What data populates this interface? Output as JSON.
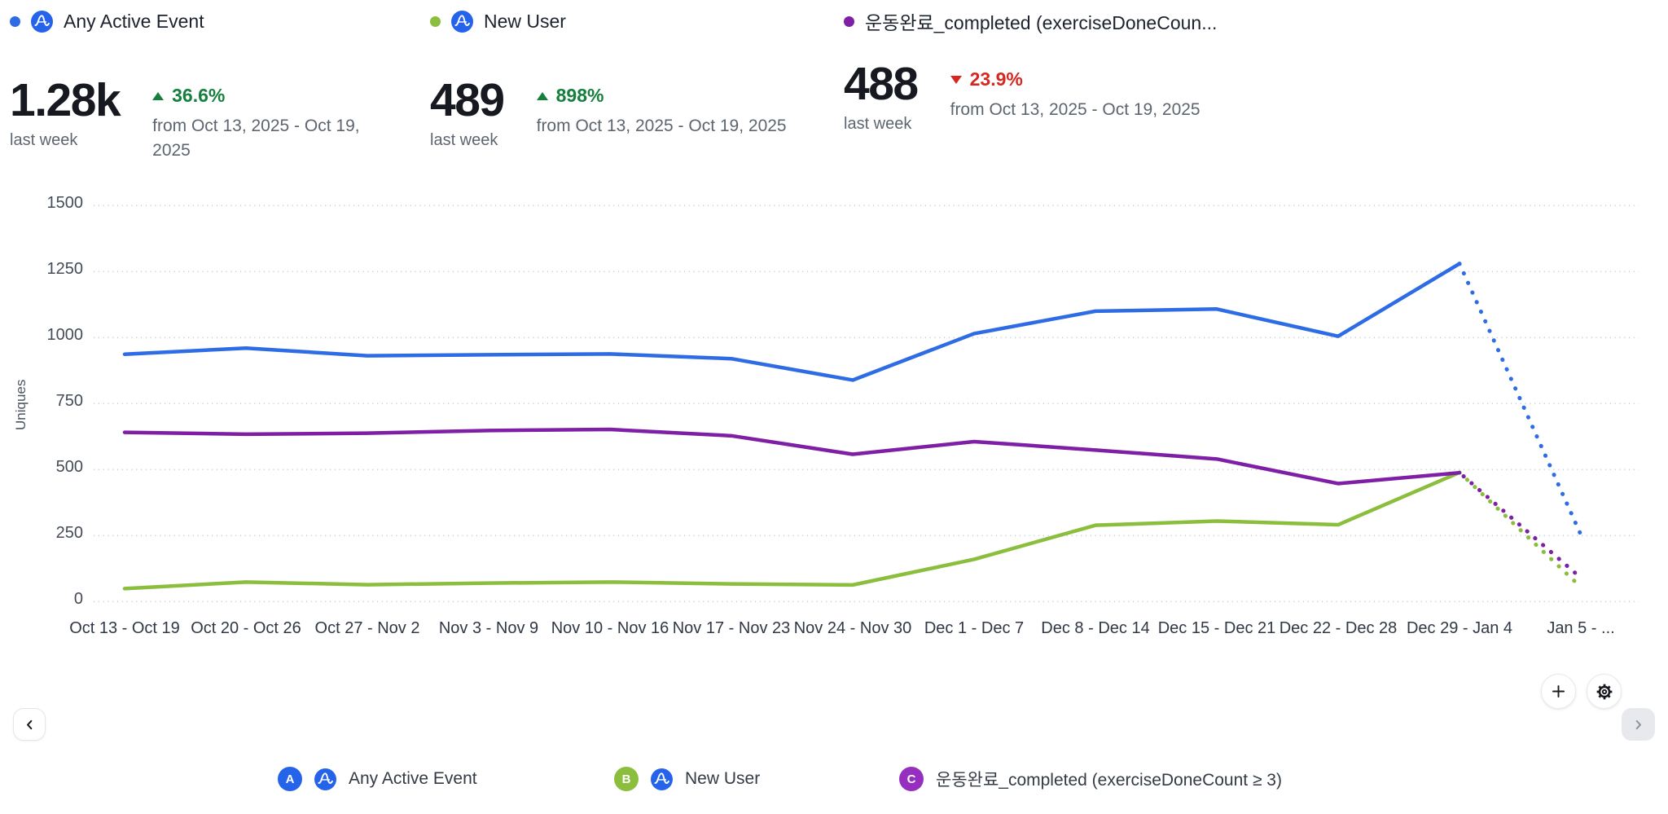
{
  "metrics": [
    {
      "label": "Any Active Event",
      "color": "#2d6ce5",
      "value": "1.28k",
      "value_caption": "last week",
      "delta": "36.6%",
      "delta_direction": "up",
      "compare_text": "from Oct 13, 2025 - Oct 19, 2025",
      "amplitude_icon": true
    },
    {
      "label": "New User",
      "color": "#8cbe3d",
      "value": "489",
      "value_caption": "last week",
      "delta": "898%",
      "delta_direction": "up",
      "compare_text": "from Oct 13, 2025 - Oct 19, 2025",
      "amplitude_icon": true
    },
    {
      "label": "운동완료_completed (exerciseDoneCoun...",
      "color": "#7e1fa5",
      "value": "488",
      "value_caption": "last week",
      "delta": "23.9%",
      "delta_direction": "down",
      "compare_text": "from Oct 13, 2025 - Oct 19, 2025",
      "amplitude_icon": false
    }
  ],
  "delta_colors": {
    "up": "#15803d",
    "down": "#d6281f"
  },
  "chart_data": {
    "type": "line",
    "title": "",
    "ylabel": "Uniques",
    "ylim": [
      0,
      1500
    ],
    "yticks": [
      1500,
      1250,
      1000,
      750,
      500,
      250,
      0
    ],
    "grid": "dotted-horizontal",
    "categories": [
      "Oct 13 - Oct 19",
      "Oct 20 - Oct 26",
      "Oct 27 - Nov 2",
      "Nov 3 - Nov 9",
      "Nov 10 - Nov 16",
      "Nov 17 - Nov 23",
      "Nov 24 - Nov 30",
      "Dec 1 - Dec 7",
      "Dec 8 - Dec 14",
      "Dec 15 - Dec 21",
      "Dec 22 - Dec 28",
      "Dec 29 - Jan 4",
      "Jan 5 - ..."
    ],
    "series": [
      {
        "key": "A",
        "name": "Any Active Event",
        "color": "#2d6ce5",
        "values": [
          937,
          960,
          931,
          935,
          938,
          920,
          839,
          1015,
          1100,
          1108,
          1005,
          1280,
          253
        ]
      },
      {
        "key": "B",
        "name": "New User",
        "color": "#8cbe3d",
        "values": [
          49,
          74,
          64,
          70,
          74,
          67,
          63,
          160,
          289,
          305,
          291,
          489,
          55
        ]
      },
      {
        "key": "C",
        "name": "운동완료_completed (exerciseDoneCount ≥ 3)",
        "color": "#7e1fa5",
        "values": [
          641,
          634,
          638,
          648,
          652,
          628,
          558,
          606,
          574,
          540,
          447,
          488,
          90
        ]
      }
    ],
    "partial_last_point": true,
    "partial_segment_style": "dotted",
    "legend_position": "bottom"
  },
  "legend": {
    "items": [
      {
        "badge": "A",
        "badge_color": "#2563eb",
        "label": "Any Active Event",
        "amplitude_icon": true
      },
      {
        "badge": "B",
        "badge_color": "#8cbe3d",
        "label": "New User",
        "amplitude_icon": true
      },
      {
        "badge": "C",
        "badge_color": "#962fbf",
        "label": "운동완료_completed (exerciseDoneCount ≥ 3)",
        "amplitude_icon": false
      }
    ]
  },
  "icons": {
    "prev": "chevron-left",
    "next": "chevron-right",
    "add": "plus",
    "settings": "gear",
    "amplitude": "amplitude-a-wave",
    "trend_up": "triangle-up",
    "trend_down": "triangle-down"
  }
}
